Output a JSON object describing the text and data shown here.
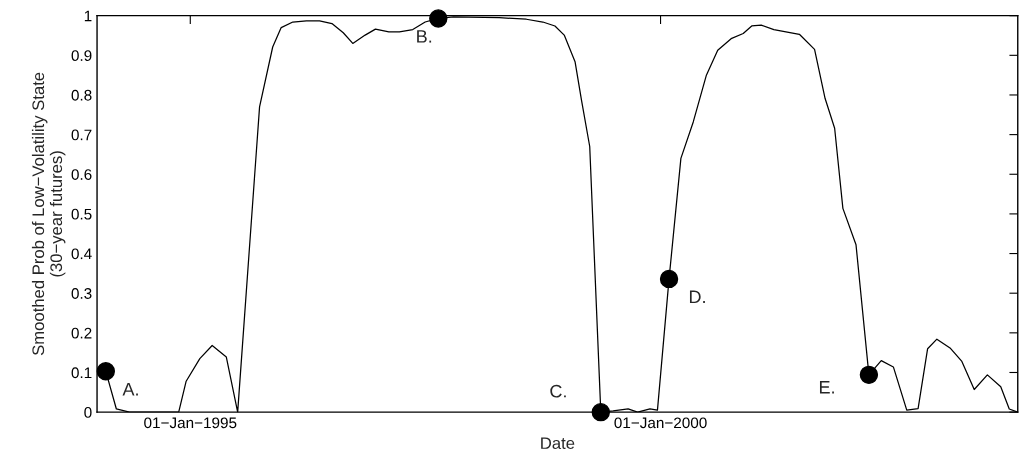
{
  "chart_data": {
    "type": "line",
    "xlabel": "Date",
    "ylabel": "Smoothed Prob of Low−Volatility State\n(30−year futures)",
    "xlim": [
      "1994-01-04",
      "2003-10-19"
    ],
    "ylim": [
      0,
      1
    ],
    "xticks": [
      {
        "value": "1995-01-01",
        "label": "01−Jan−1995"
      },
      {
        "value": "2000-01-01",
        "label": "01−Jan−2000"
      }
    ],
    "yticks": [
      0,
      0.1,
      0.2,
      0.3,
      0.4,
      0.5,
      0.6,
      0.7,
      0.8,
      0.9,
      1
    ],
    "grid": false,
    "legend": false,
    "series": [
      {
        "color": "#000000",
        "marker": "none",
        "line_style": "solid",
        "x": [
          "1994-02-07",
          "1994-03-20",
          "1994-05-10",
          "1994-07-08",
          "1994-11-17",
          "1994-12-16",
          "1995-02-07",
          "1995-03-27",
          "1995-05-21",
          "1995-07-04",
          "1995-09-27",
          "1995-11-17",
          "1995-12-20",
          "1996-02-03",
          "1996-03-27",
          "1996-05-17",
          "1996-07-04",
          "1996-08-17",
          "1996-09-23",
          "1996-11-10",
          "1996-12-20",
          "1997-02-10",
          "1997-03-23",
          "1997-05-14",
          "1997-07-01",
          "1997-08-21",
          "1997-10-19",
          "1998-04-15",
          "1998-07-29",
          "1998-10-01",
          "1998-11-17",
          "1998-12-23",
          "1999-02-03",
          "1999-02-28",
          "1999-04-01",
          "1999-05-14",
          "1999-07-01",
          "1999-08-28",
          "1999-10-04",
          "1999-11-21",
          "1999-12-20",
          "2000-02-03",
          "2000-03-20",
          "2000-05-07",
          "2000-06-27",
          "2000-08-10",
          "2000-10-01",
          "2000-11-17",
          "2000-12-20",
          "2001-01-26",
          "2001-03-16",
          "2001-06-23",
          "2001-08-21",
          "2001-10-01",
          "2001-11-07",
          "2001-12-09",
          "2002-01-29",
          "2002-03-20",
          "2002-05-07",
          "2002-06-23",
          "2002-08-14",
          "2002-09-27",
          "2002-11-03",
          "2002-12-09",
          "2003-01-29",
          "2003-03-16",
          "2003-05-03",
          "2003-06-23",
          "2003-08-14",
          "2003-09-16",
          "2003-10-19"
        ],
        "values": [
          0.103,
          0.008,
          0,
          0,
          0,
          0.078,
          0.135,
          0.168,
          0.139,
          0,
          0.77,
          0.921,
          0.97,
          0.984,
          0.987,
          0.987,
          0.98,
          0.957,
          0.93,
          0.951,
          0.966,
          0.959,
          0.959,
          0.965,
          0.984,
          0.993,
          0.997,
          0.995,
          0.991,
          0.984,
          0.974,
          0.951,
          0.884,
          0.787,
          0.67,
          0,
          0.003,
          0.008,
          0,
          0.008,
          0.005,
          0.336,
          0.64,
          0.732,
          0.85,
          0.913,
          0.942,
          0.955,
          0.974,
          0.976,
          0.965,
          0.953,
          0.915,
          0.791,
          0.716,
          0.514,
          0.422,
          0.094,
          0.13,
          0.114,
          0.005,
          0.009,
          0.16,
          0.184,
          0.162,
          0.128,
          0.057,
          0.094,
          0.064,
          0.008,
          0
        ]
      },
      {
        "type": "scatter",
        "color": "#000000",
        "marker": "circle",
        "x": [
          "1994-02-07",
          "1997-08-21",
          "1999-05-14",
          "2000-02-03",
          "2002-03-20"
        ],
        "values": [
          0.103,
          0.993,
          0,
          0.336,
          0.094
        ]
      }
    ],
    "annotations": [
      {
        "text": "A.",
        "x": "1994-02-07",
        "y": 0.103
      },
      {
        "text": "B.",
        "x": "1997-08-21",
        "y": 0.993
      },
      {
        "text": "C.",
        "x": "1999-05-14",
        "y": 0
      },
      {
        "text": "D.",
        "x": "2000-02-03",
        "y": 0.336
      },
      {
        "text": "E.",
        "x": "2002-03-20",
        "y": 0.094
      }
    ]
  }
}
